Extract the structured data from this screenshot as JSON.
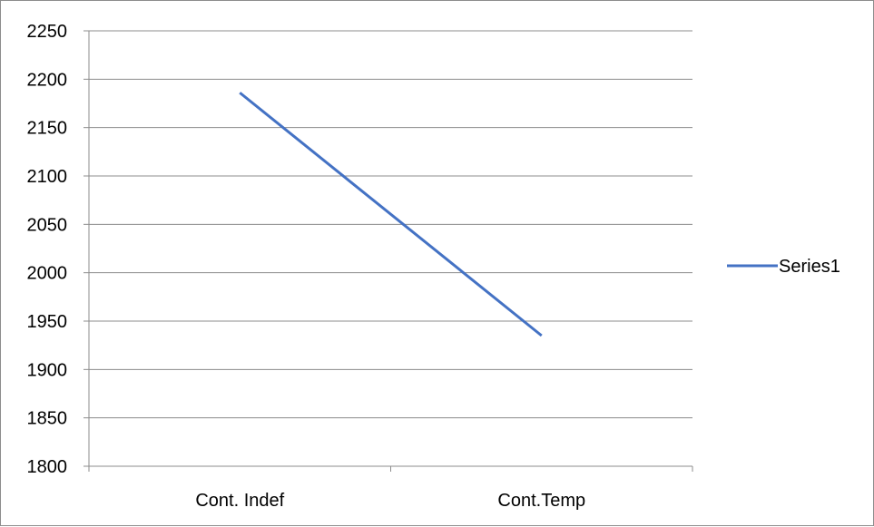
{
  "chart_data": {
    "type": "line",
    "categories": [
      "Cont. Indef",
      "Cont.Temp"
    ],
    "series": [
      {
        "name": "Series1",
        "values": [
          2186,
          1935
        ],
        "color": "#4472c4"
      }
    ],
    "ylim": [
      1800,
      2250
    ],
    "yticks": [
      1800,
      1850,
      1900,
      1950,
      2000,
      2050,
      2100,
      2150,
      2200,
      2250
    ],
    "ytick_labels": [
      "1800",
      "1850",
      "1900",
      "1950",
      "2000",
      "2050",
      "2100",
      "2150",
      "2200",
      "2250"
    ],
    "grid": true,
    "legend": "right",
    "title": "",
    "xlabel": "",
    "ylabel": ""
  }
}
